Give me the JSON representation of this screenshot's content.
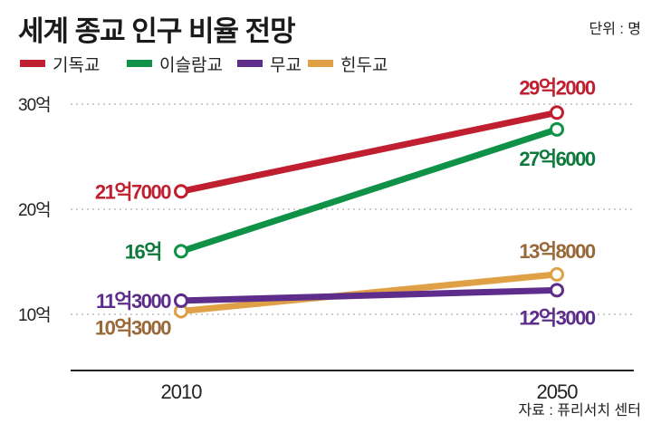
{
  "chart_data": {
    "type": "line",
    "title": "세계 종교 인구 비율 전망",
    "unit_note": "단위 : 명",
    "source": "자료 : 퓨리서치 센터",
    "x": [
      "2010",
      "2050"
    ],
    "ylim": [
      4.7,
      33
    ],
    "yticks": [
      10,
      20,
      30
    ],
    "ytick_labels": [
      "10억",
      "20억",
      "30억"
    ],
    "grid": "dotted horizontal at ticks",
    "legend_placement": "top-left",
    "series": [
      {
        "name": "기독교",
        "color": "#c01f2f",
        "label_color": "#c01f2f",
        "values": [
          21.7,
          29.2
        ],
        "labels": [
          "21억7000",
          "29억2000"
        ]
      },
      {
        "name": "이슬람교",
        "color": "#0f9248",
        "label_color": "#0d7a3c",
        "values": [
          16,
          27.6
        ],
        "labels": [
          "16억",
          "27억6000"
        ]
      },
      {
        "name": "무교",
        "color": "#5e2d8c",
        "label_color": "#5e2d8c",
        "values": [
          11.3,
          12.3
        ],
        "labels": [
          "11억3000",
          "12억3000"
        ]
      },
      {
        "name": "힌두교",
        "color": "#e0a045",
        "label_color": "#9a6838",
        "values": [
          10.3,
          13.8
        ],
        "labels": [
          "10억3000",
          "13억8000"
        ]
      }
    ]
  }
}
